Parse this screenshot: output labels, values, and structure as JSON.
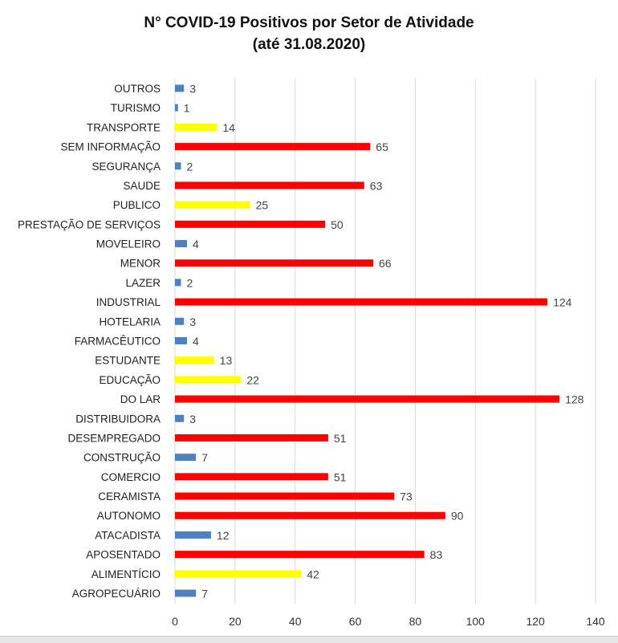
{
  "chart_data": {
    "type": "bar",
    "orientation": "horizontal",
    "title": "N° COVID-19 Positivos por Setor de Atividade",
    "subtitle": "(até 31.08.2020)",
    "xlabel": "",
    "ylabel": "",
    "xlim": [
      0,
      140
    ],
    "xticks": [
      0,
      20,
      40,
      60,
      80,
      100,
      120,
      140
    ],
    "grid": "vertical",
    "categories": [
      "OUTROS",
      "TURISMO",
      "TRANSPORTE",
      "SEM INFORMAÇÃO",
      "SEGURANÇA",
      "SAUDE",
      "PUBLICO",
      "PRESTAÇÃO DE SERVIÇOS",
      "MOVELEIRO",
      "MENOR",
      "LAZER",
      "INDUSTRIAL",
      "HOTELARIA",
      "FARMACÊUTICO",
      "ESTUDANTE",
      "EDUCAÇÃO",
      "DO LAR",
      "DISTRIBUIDORA",
      "DESEMPREGADO",
      "CONSTRUÇÃO",
      "COMERCIO",
      "CERAMISTA",
      "AUTONOMO",
      "ATACADISTA",
      "APOSENTADO",
      "ALIMENTÍCIO",
      "AGROPECUÁRIO"
    ],
    "values": [
      3,
      1,
      14,
      65,
      2,
      63,
      25,
      50,
      4,
      66,
      2,
      124,
      3,
      4,
      13,
      22,
      128,
      3,
      51,
      7,
      51,
      73,
      90,
      12,
      83,
      42,
      7
    ],
    "bar_colors": [
      "#4f81bd",
      "#4f81bd",
      "#ffff00",
      "#ff0000",
      "#4f81bd",
      "#ff0000",
      "#ffff00",
      "#ff0000",
      "#4f81bd",
      "#ff0000",
      "#4f81bd",
      "#ff0000",
      "#4f81bd",
      "#4f81bd",
      "#ffff00",
      "#ffff00",
      "#ff0000",
      "#4f81bd",
      "#ff0000",
      "#4f81bd",
      "#ff0000",
      "#ff0000",
      "#ff0000",
      "#4f81bd",
      "#ff0000",
      "#ffff00",
      "#4f81bd"
    ]
  }
}
